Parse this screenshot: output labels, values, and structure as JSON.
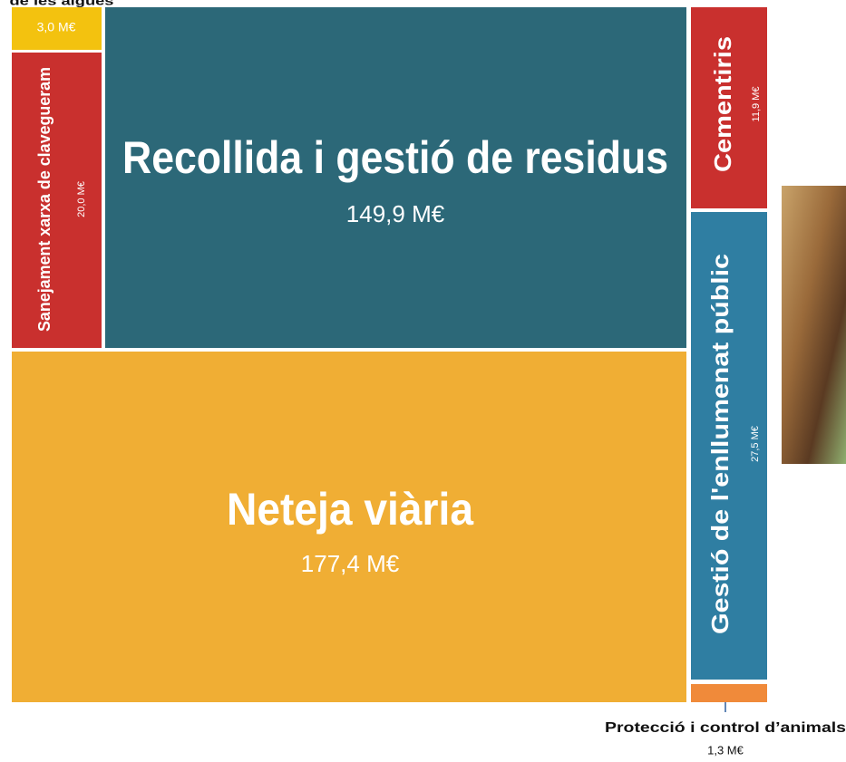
{
  "chart_data": {
    "type": "treemap",
    "categories": [
      "de les aigües",
      "Sanejament xarxa de clavegueram",
      "Recollida i gestió de residus",
      "Neteja viària",
      "Cementiris",
      "Gestió de l'enllumenat públic",
      "Protecció i control d’animals"
    ],
    "values": [
      3.0,
      20.0,
      149.9,
      177.4,
      11.9,
      27.5,
      1.3
    ],
    "value_labels": [
      "3,0 M€",
      "20,0 M€",
      "149,9 M€",
      "177,4 M€",
      "11,9 M€",
      "27,5 M€",
      "1,3 M€"
    ],
    "colors": [
      "#f3c20f",
      "#c9302e",
      "#2c6878",
      "#f0ae34",
      "#c9302e",
      "#2f7ea2",
      "#f08a3a"
    ]
  }
}
